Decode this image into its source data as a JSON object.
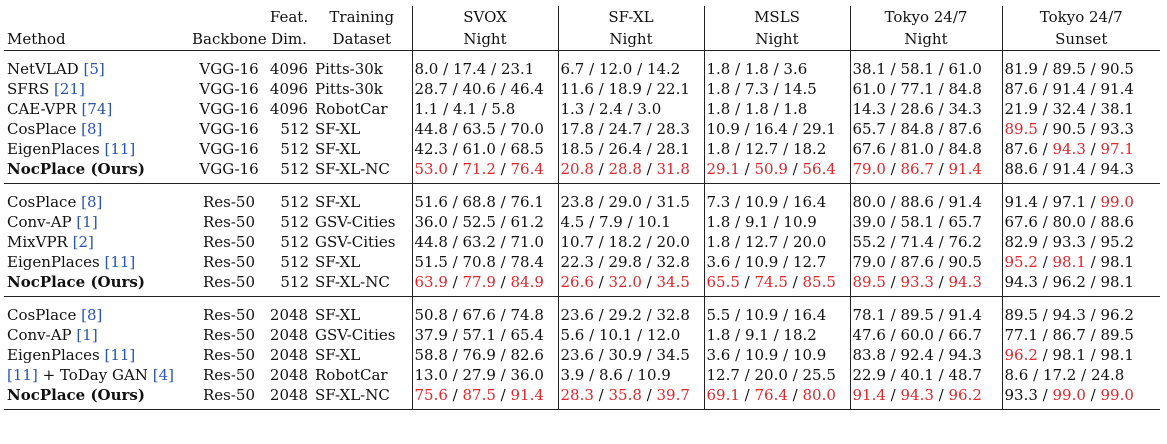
{
  "header": {
    "method": "Method",
    "backbone": "Backbone",
    "feat_top": "Feat.",
    "feat_bottom": "Dim.",
    "train_top": "Training",
    "train_bottom": "Dataset",
    "datasets": [
      {
        "top": "SVOX",
        "bottom": "Night"
      },
      {
        "top": "SF-XL",
        "bottom": "Night"
      },
      {
        "top": "MSLS",
        "bottom": "Night"
      },
      {
        "top": "Tokyo 24/7",
        "bottom": "Night"
      },
      {
        "top": "Tokyo 24/7",
        "bottom": "Sunset"
      }
    ]
  },
  "groups": [
    {
      "rows": [
        {
          "name": "NetVLAD",
          "ref": "[5]",
          "bold": false,
          "backbone": "VGG-16",
          "dim": "4096",
          "train": "Pitts-30k",
          "cells": [
            [
              "8.0",
              "17.4",
              "23.1"
            ],
            [
              "6.7",
              "12.0",
              "14.2"
            ],
            [
              "1.8",
              "1.8",
              "3.6"
            ],
            [
              "38.1",
              "58.1",
              "61.0"
            ],
            [
              "81.9",
              "89.5",
              "90.5"
            ]
          ],
          "red": [
            [
              0,
              0,
              0
            ],
            [
              0,
              0,
              0
            ],
            [
              0,
              0,
              0
            ],
            [
              0,
              0,
              0
            ],
            [
              0,
              0,
              0
            ]
          ]
        },
        {
          "name": "SFRS",
          "ref": "[21]",
          "bold": false,
          "backbone": "VGG-16",
          "dim": "4096",
          "train": "Pitts-30k",
          "cells": [
            [
              "28.7",
              "40.6",
              "46.4"
            ],
            [
              "11.6",
              "18.9",
              "22.1"
            ],
            [
              "1.8",
              "7.3",
              "14.5"
            ],
            [
              "61.0",
              "77.1",
              "84.8"
            ],
            [
              "87.6",
              "91.4",
              "91.4"
            ]
          ],
          "red": [
            [
              0,
              0,
              0
            ],
            [
              0,
              0,
              0
            ],
            [
              0,
              0,
              0
            ],
            [
              0,
              0,
              0
            ],
            [
              0,
              0,
              0
            ]
          ]
        },
        {
          "name": "CAE-VPR",
          "ref": "[74]",
          "bold": false,
          "backbone": "VGG-16",
          "dim": "4096",
          "train": "RobotCar",
          "cells": [
            [
              "1.1",
              "4.1",
              "5.8"
            ],
            [
              "1.3",
              "2.4",
              "3.0"
            ],
            [
              "1.8",
              "1.8",
              "1.8"
            ],
            [
              "14.3",
              "28.6",
              "34.3"
            ],
            [
              "21.9",
              "32.4",
              "38.1"
            ]
          ],
          "red": [
            [
              0,
              0,
              0
            ],
            [
              0,
              0,
              0
            ],
            [
              0,
              0,
              0
            ],
            [
              0,
              0,
              0
            ],
            [
              0,
              0,
              0
            ]
          ]
        },
        {
          "name": "CosPlace",
          "ref": "[8]",
          "bold": false,
          "backbone": "VGG-16",
          "dim": "512",
          "train": "SF-XL",
          "cells": [
            [
              "44.8",
              "63.5",
              "70.0"
            ],
            [
              "17.8",
              "24.7",
              "28.3"
            ],
            [
              "10.9",
              "16.4",
              "29.1"
            ],
            [
              "65.7",
              "84.8",
              "87.6"
            ],
            [
              "89.5",
              "90.5",
              "93.3"
            ]
          ],
          "red": [
            [
              0,
              0,
              0
            ],
            [
              0,
              0,
              0
            ],
            [
              0,
              0,
              0
            ],
            [
              0,
              0,
              0
            ],
            [
              1,
              0,
              0
            ]
          ]
        },
        {
          "name": "EigenPlaces",
          "ref": "[11]",
          "bold": false,
          "backbone": "VGG-16",
          "dim": "512",
          "train": "SF-XL",
          "cells": [
            [
              "42.3",
              "61.0",
              "68.5"
            ],
            [
              "18.5",
              "26.4",
              "28.1"
            ],
            [
              "1.8",
              "12.7",
              "18.2"
            ],
            [
              "67.6",
              "81.0",
              "84.8"
            ],
            [
              "87.6",
              "94.3",
              "97.1"
            ]
          ],
          "red": [
            [
              0,
              0,
              0
            ],
            [
              0,
              0,
              0
            ],
            [
              0,
              0,
              0
            ],
            [
              0,
              0,
              0
            ],
            [
              0,
              1,
              1
            ]
          ]
        },
        {
          "name": "NocPlace (Ours)",
          "ref": "",
          "bold": true,
          "backbone": "VGG-16",
          "dim": "512",
          "train": "SF-XL-NC",
          "cells": [
            [
              "53.0",
              "71.2",
              "76.4"
            ],
            [
              "20.8",
              "28.8",
              "31.8"
            ],
            [
              "29.1",
              "50.9",
              "56.4"
            ],
            [
              "79.0",
              "86.7",
              "91.4"
            ],
            [
              "88.6",
              "91.4",
              "94.3"
            ]
          ],
          "red": [
            [
              1,
              1,
              1
            ],
            [
              1,
              1,
              1
            ],
            [
              1,
              1,
              1
            ],
            [
              1,
              1,
              1
            ],
            [
              0,
              0,
              0
            ]
          ]
        }
      ]
    },
    {
      "rows": [
        {
          "name": "CosPlace",
          "ref": "[8]",
          "bold": false,
          "backbone": "Res-50",
          "dim": "512",
          "train": "SF-XL",
          "cells": [
            [
              "51.6",
              "68.8",
              "76.1"
            ],
            [
              "23.8",
              "29.0",
              "31.5"
            ],
            [
              "7.3",
              "10.9",
              "16.4"
            ],
            [
              "80.0",
              "88.6",
              "91.4"
            ],
            [
              "91.4",
              "97.1",
              "99.0"
            ]
          ],
          "red": [
            [
              0,
              0,
              0
            ],
            [
              0,
              0,
              0
            ],
            [
              0,
              0,
              0
            ],
            [
              0,
              0,
              0
            ],
            [
              0,
              0,
              1
            ]
          ]
        },
        {
          "name": "Conv-AP",
          "ref": "[1]",
          "bold": false,
          "backbone": "Res-50",
          "dim": "512",
          "train": "GSV-Cities",
          "cells": [
            [
              "36.0",
              "52.5",
              "61.2"
            ],
            [
              "4.5",
              "7.9",
              "10.1"
            ],
            [
              "1.8",
              "9.1",
              "10.9"
            ],
            [
              "39.0",
              "58.1",
              "65.7"
            ],
            [
              "67.6",
              "80.0",
              "88.6"
            ]
          ],
          "red": [
            [
              0,
              0,
              0
            ],
            [
              0,
              0,
              0
            ],
            [
              0,
              0,
              0
            ],
            [
              0,
              0,
              0
            ],
            [
              0,
              0,
              0
            ]
          ]
        },
        {
          "name": "MixVPR",
          "ref": "[2]",
          "bold": false,
          "backbone": "Res-50",
          "dim": "512",
          "train": "GSV-Cities",
          "cells": [
            [
              "44.8",
              "63.2",
              "71.0"
            ],
            [
              "10.7",
              "18.2",
              "20.0"
            ],
            [
              "1.8",
              "12.7",
              "20.0"
            ],
            [
              "55.2",
              "71.4",
              "76.2"
            ],
            [
              "82.9",
              "93.3",
              "95.2"
            ]
          ],
          "red": [
            [
              0,
              0,
              0
            ],
            [
              0,
              0,
              0
            ],
            [
              0,
              0,
              0
            ],
            [
              0,
              0,
              0
            ],
            [
              0,
              0,
              0
            ]
          ]
        },
        {
          "name": "EigenPlaces",
          "ref": "[11]",
          "bold": false,
          "backbone": "Res-50",
          "dim": "512",
          "train": "SF-XL",
          "cells": [
            [
              "51.5",
              "70.8",
              "78.4"
            ],
            [
              "22.3",
              "29.8",
              "32.8"
            ],
            [
              "3.6",
              "10.9",
              "12.7"
            ],
            [
              "79.0",
              "87.6",
              "90.5"
            ],
            [
              "95.2",
              "98.1",
              "98.1"
            ]
          ],
          "red": [
            [
              0,
              0,
              0
            ],
            [
              0,
              0,
              0
            ],
            [
              0,
              0,
              0
            ],
            [
              0,
              0,
              0
            ],
            [
              1,
              1,
              0
            ]
          ]
        },
        {
          "name": "NocPlace (Ours)",
          "ref": "",
          "bold": true,
          "backbone": "Res-50",
          "dim": "512",
          "train": "SF-XL-NC",
          "cells": [
            [
              "63.9",
              "77.9",
              "84.9"
            ],
            [
              "26.6",
              "32.0",
              "34.5"
            ],
            [
              "65.5",
              "74.5",
              "85.5"
            ],
            [
              "89.5",
              "93.3",
              "94.3"
            ],
            [
              "94.3",
              "96.2",
              "98.1"
            ]
          ],
          "red": [
            [
              1,
              1,
              1
            ],
            [
              1,
              1,
              1
            ],
            [
              1,
              1,
              1
            ],
            [
              1,
              1,
              1
            ],
            [
              0,
              0,
              0
            ]
          ]
        }
      ]
    },
    {
      "rows": [
        {
          "name": "CosPlace",
          "ref": "[8]",
          "bold": false,
          "backbone": "Res-50",
          "dim": "2048",
          "train": "SF-XL",
          "cells": [
            [
              "50.8",
              "67.6",
              "74.8"
            ],
            [
              "23.6",
              "29.2",
              "32.8"
            ],
            [
              "5.5",
              "10.9",
              "16.4"
            ],
            [
              "78.1",
              "89.5",
              "91.4"
            ],
            [
              "89.5",
              "94.3",
              "96.2"
            ]
          ],
          "red": [
            [
              0,
              0,
              0
            ],
            [
              0,
              0,
              0
            ],
            [
              0,
              0,
              0
            ],
            [
              0,
              0,
              0
            ],
            [
              0,
              0,
              0
            ]
          ]
        },
        {
          "name": "Conv-AP",
          "ref": "[1]",
          "bold": false,
          "backbone": "Res-50",
          "dim": "2048",
          "train": "GSV-Cities",
          "cells": [
            [
              "37.9",
              "57.1",
              "65.4"
            ],
            [
              "5.6",
              "10.1",
              "12.0"
            ],
            [
              "1.8",
              "9.1",
              "18.2"
            ],
            [
              "47.6",
              "60.0",
              "66.7"
            ],
            [
              "77.1",
              "86.7",
              "89.5"
            ]
          ],
          "red": [
            [
              0,
              0,
              0
            ],
            [
              0,
              0,
              0
            ],
            [
              0,
              0,
              0
            ],
            [
              0,
              0,
              0
            ],
            [
              0,
              0,
              0
            ]
          ]
        },
        {
          "name": "EigenPlaces",
          "ref": "[11]",
          "bold": false,
          "backbone": "Res-50",
          "dim": "2048",
          "train": "SF-XL",
          "cells": [
            [
              "58.8",
              "76.9",
              "82.6"
            ],
            [
              "23.6",
              "30.9",
              "34.5"
            ],
            [
              "3.6",
              "10.9",
              "10.9"
            ],
            [
              "83.8",
              "92.4",
              "94.3"
            ],
            [
              "96.2",
              "98.1",
              "98.1"
            ]
          ],
          "red": [
            [
              0,
              0,
              0
            ],
            [
              0,
              0,
              0
            ],
            [
              0,
              0,
              0
            ],
            [
              0,
              0,
              0
            ],
            [
              1,
              0,
              0
            ]
          ]
        },
        {
          "name": "+ ToDay GAN",
          "ref": "[11]",
          "ref2": "[4]",
          "bold": false,
          "backbone": "Res-50",
          "dim": "2048",
          "train": "RobotCar",
          "cells": [
            [
              "13.0",
              "27.9",
              "36.0"
            ],
            [
              "3.9",
              "8.6",
              "10.9"
            ],
            [
              "12.7",
              "20.0",
              "25.5"
            ],
            [
              "22.9",
              "40.1",
              "48.7"
            ],
            [
              "8.6",
              "17.2",
              "24.8"
            ]
          ],
          "red": [
            [
              0,
              0,
              0
            ],
            [
              0,
              0,
              0
            ],
            [
              0,
              0,
              0
            ],
            [
              0,
              0,
              0
            ],
            [
              0,
              0,
              0
            ]
          ]
        },
        {
          "name": "NocPlace (Ours)",
          "ref": "",
          "bold": true,
          "backbone": "Res-50",
          "dim": "2048",
          "train": "SF-XL-NC",
          "cells": [
            [
              "75.6",
              "87.5",
              "91.4"
            ],
            [
              "28.3",
              "35.8",
              "39.7"
            ],
            [
              "69.1",
              "76.4",
              "80.0"
            ],
            [
              "91.4",
              "94.3",
              "96.2"
            ],
            [
              "93.3",
              "99.0",
              "99.0"
            ]
          ],
          "red": [
            [
              1,
              1,
              1
            ],
            [
              1,
              1,
              1
            ],
            [
              1,
              1,
              1
            ],
            [
              1,
              1,
              1
            ],
            [
              0,
              1,
              1
            ]
          ]
        }
      ]
    }
  ]
}
